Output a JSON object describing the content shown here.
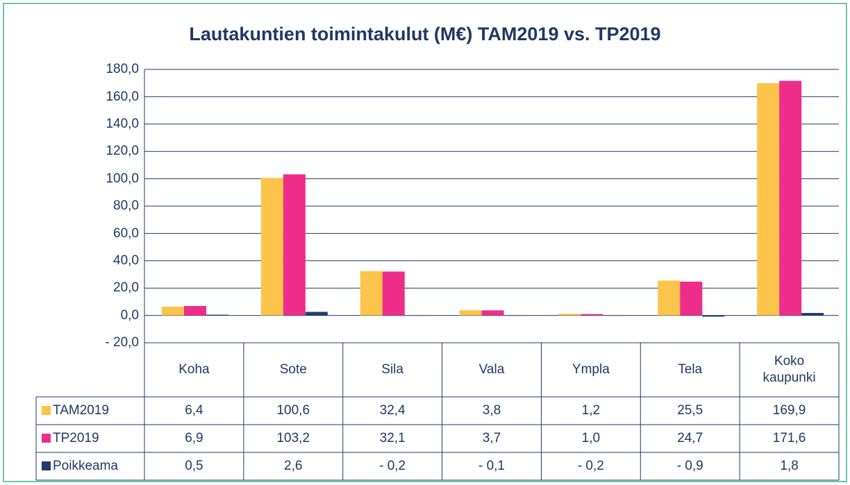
{
  "chart_data": {
    "type": "bar",
    "title": "Lautakuntien toimintakulut (M€) TAM2019 vs. TP2019",
    "categories": [
      "Koha",
      "Sote",
      "Sila",
      "Vala",
      "Ympla",
      "Tela",
      "Koko kaupunki"
    ],
    "series": [
      {
        "name": "TAM2019",
        "color": "#fcc44a",
        "values": [
          6.4,
          100.6,
          32.4,
          3.8,
          1.2,
          25.5,
          169.9
        ],
        "value_labels": [
          "6,4",
          "100,6",
          "32,4",
          "3,8",
          "1,2",
          "25,5",
          "169,9"
        ]
      },
      {
        "name": "TP2019",
        "color": "#ee2d8a",
        "values": [
          6.9,
          103.2,
          32.1,
          3.7,
          1.0,
          24.7,
          171.6
        ],
        "value_labels": [
          "6,9",
          "103,2",
          "32,1",
          "3,7",
          "1,0",
          "24,7",
          "171,6"
        ]
      },
      {
        "name": "Poikkeama",
        "color": "#1f3e6e",
        "values": [
          0.5,
          2.6,
          -0.2,
          -0.1,
          -0.2,
          -0.9,
          1.8
        ],
        "value_labels": [
          "0,5",
          "2,6",
          "- 0,2",
          "- 0,1",
          "- 0,2",
          "- 0,9",
          "1,8"
        ]
      }
    ],
    "ylim": [
      -20,
      180
    ],
    "yticks": [
      {
        "value": -20,
        "label": "- 20,0"
      },
      {
        "value": 0,
        "label": "0,0"
      },
      {
        "value": 20,
        "label": "20,0"
      },
      {
        "value": 40,
        "label": "40,0"
      },
      {
        "value": 60,
        "label": "60,0"
      },
      {
        "value": 80,
        "label": "80,0"
      },
      {
        "value": 100,
        "label": "100,0"
      },
      {
        "value": 120,
        "label": "120,0"
      },
      {
        "value": 140,
        "label": "140,0"
      },
      {
        "value": 160,
        "label": "160,0"
      },
      {
        "value": 180,
        "label": "180,0"
      }
    ],
    "grid": true
  }
}
